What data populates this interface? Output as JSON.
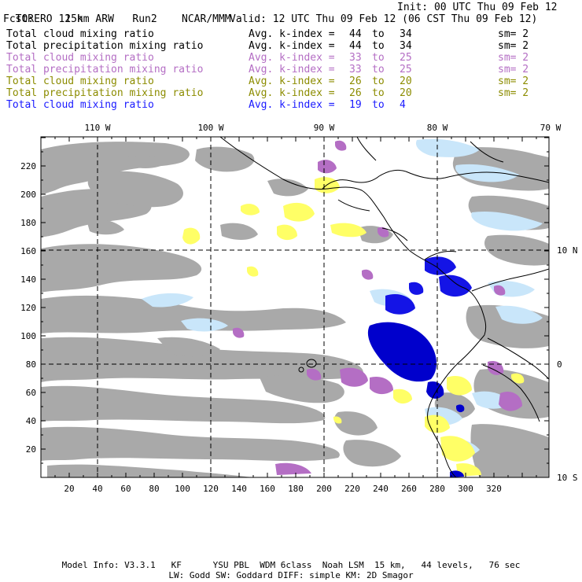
{
  "header": {
    "model": "TORERO",
    "resolution": "15km ARW",
    "run": "Run2",
    "org": "NCAR/MMM",
    "init": "Init: 00 UTC Thu 09 Feb 12",
    "fcst_label": "Fcst:",
    "fcst_value": "12 h",
    "valid": "Valid: 12 UTC Thu 09 Feb 12 (06 CST Thu 09 Feb 12)"
  },
  "legend": [
    {
      "field": "Total cloud mixing ratio",
      "avg": "Avg. k-index =",
      "from": "44",
      "to_word": "to",
      "to": "34",
      "sm": "sm= 2",
      "color": "#000000"
    },
    {
      "field": "Total precipitation mixing ratio",
      "avg": "Avg. k-index =",
      "from": "44",
      "to_word": "to",
      "to": "34",
      "sm": "sm= 2",
      "color": "#000000"
    },
    {
      "field": "Total cloud mixing ratio",
      "avg": "Avg. k-index =",
      "from": "33",
      "to_word": "to",
      "to": "25",
      "sm": "sm= 2",
      "color": "#b46ec4"
    },
    {
      "field": "Total precipitation mixing ratio",
      "avg": "Avg. k-index =",
      "from": "33",
      "to_word": "to",
      "to": "25",
      "sm": "sm= 2",
      "color": "#b46ec4"
    },
    {
      "field": "Total cloud mixing ratio",
      "avg": "Avg. k-index =",
      "from": "26",
      "to_word": "to",
      "to": "20",
      "sm": "sm= 2",
      "color": "#8c8c00"
    },
    {
      "field": "Total precipitation mixing ratio",
      "avg": "Avg. k-index =",
      "from": "26",
      "to_word": "to",
      "to": "20",
      "sm": "sm= 2",
      "color": "#8c8c00"
    },
    {
      "field": "Total cloud mixing ratio",
      "avg": "Avg. k-index =",
      "from": "19",
      "to_word": "to",
      "to": "4",
      "sm": "",
      "color": "#1a1aff"
    }
  ],
  "map": {
    "lon_labels": [
      "110 W",
      "100 W",
      "90 W",
      "80 W",
      "70 W"
    ],
    "lat_labels": [
      "10 N",
      "0",
      "10 S"
    ],
    "x_ticks": [
      "20",
      "40",
      "60",
      "80",
      "100",
      "120",
      "140",
      "160",
      "180",
      "200",
      "220",
      "240",
      "260",
      "280",
      "300",
      "320"
    ],
    "y_ticks": [
      "20",
      "40",
      "60",
      "80",
      "100",
      "120",
      "140",
      "160",
      "180",
      "200",
      "220"
    ],
    "colors": {
      "cloud_gray": "#a9a9a9",
      "purple": "#b46ec4",
      "yellow": "#ffff66",
      "light_blue": "#c9e6fa",
      "blue": "#1414e6",
      "dark_blue": "#0000cc"
    }
  },
  "footer": {
    "line1": "Model Info: V3.3.1   KF      YSU PBL  WDM 6class  Noah LSM  15 km,   44 levels,   76 sec",
    "line2": "LW: Godd SW: Goddard DIFF: simple KM: 2D Smagor"
  }
}
